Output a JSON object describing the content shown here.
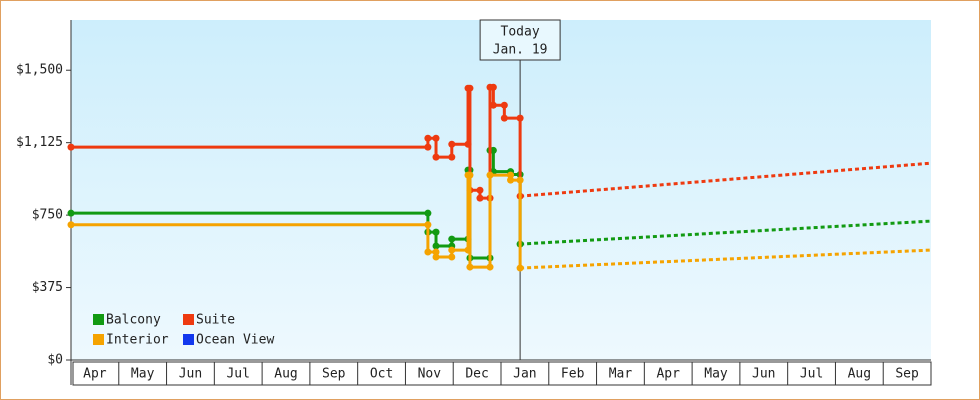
{
  "chart_data": {
    "type": "line",
    "annotation": [
      "Today",
      "Jan. 19"
    ],
    "annotation_x": 9.4,
    "xlim": [
      0,
      18
    ],
    "ylim": [
      0,
      1760
    ],
    "xticks": [
      {
        "value": 0.5,
        "label": "Apr"
      },
      {
        "value": 1.5,
        "label": "May"
      },
      {
        "value": 2.5,
        "label": "Jun"
      },
      {
        "value": 3.5,
        "label": "Jul"
      },
      {
        "value": 4.5,
        "label": "Aug"
      },
      {
        "value": 5.5,
        "label": "Sep"
      },
      {
        "value": 6.5,
        "label": "Oct"
      },
      {
        "value": 7.5,
        "label": "Nov"
      },
      {
        "value": 8.5,
        "label": "Dec"
      },
      {
        "value": 9.5,
        "label": "Jan"
      },
      {
        "value": 10.5,
        "label": "Feb"
      },
      {
        "value": 11.5,
        "label": "Mar"
      },
      {
        "value": 12.5,
        "label": "Apr"
      },
      {
        "value": 13.5,
        "label": "May"
      },
      {
        "value": 14.5,
        "label": "Jun"
      },
      {
        "value": 15.5,
        "label": "Jul"
      },
      {
        "value": 16.5,
        "label": "Aug"
      },
      {
        "value": 17.5,
        "label": "Sep"
      }
    ],
    "yticks": [
      {
        "value": 0,
        "label": "$0"
      },
      {
        "value": 375,
        "label": "$375"
      },
      {
        "value": 750,
        "label": "$750"
      },
      {
        "value": 1125,
        "label": "$1,125"
      },
      {
        "value": 1500,
        "label": "$1,500"
      }
    ],
    "series": [
      {
        "name": "Balcony",
        "color": "#129a12",
        "x": [
          0,
          7.47,
          7.47,
          7.64,
          7.64,
          7.97,
          7.97,
          8.31,
          8.31,
          8.35,
          8.35,
          8.77,
          8.77,
          8.84,
          8.84,
          9.2,
          9.2,
          9.4,
          9.4
        ],
        "values": [
          760,
          760,
          662,
          662,
          590,
          590,
          626,
          626,
          983,
          983,
          528,
          528,
          1085,
          1085,
          975,
          975,
          960,
          960,
          600
        ],
        "forecast_x": [
          9.4,
          18
        ],
        "forecast_values": [
          600,
          719
        ]
      },
      {
        "name": "Suite",
        "color": "#ee3a10",
        "x": [
          0,
          7.47,
          7.47,
          7.64,
          7.64,
          7.97,
          7.97,
          8.31,
          8.31,
          8.35,
          8.35,
          8.56,
          8.56,
          8.77,
          8.77,
          8.84,
          8.84,
          9.07,
          9.07,
          9.4,
          9.4
        ],
        "values": [
          1102,
          1102,
          1148,
          1148,
          1050,
          1050,
          1117,
          1117,
          1407,
          1407,
          879,
          879,
          838,
          838,
          1412,
          1412,
          1319,
          1319,
          1252,
          1252,
          848
        ],
        "forecast_x": [
          9.4,
          18
        ],
        "forecast_values": [
          848,
          1019
        ]
      },
      {
        "name": "Interior",
        "color": "#f5a300",
        "x": [
          0,
          7.47,
          7.47,
          7.64,
          7.64,
          7.97,
          7.97,
          8.31,
          8.31,
          8.35,
          8.35,
          8.77,
          8.77,
          9.2,
          9.2,
          9.4,
          9.4
        ],
        "values": [
          700,
          700,
          559,
          559,
          533,
          533,
          569,
          569,
          957,
          957,
          481,
          481,
          957,
          957,
          931,
          931,
          476
        ],
        "forecast_x": [
          9.4,
          18
        ],
        "forecast_values": [
          476,
          569
        ]
      },
      {
        "name": "Ocean View",
        "color": "#1238ee",
        "x": [],
        "values": [],
        "forecast_x": [],
        "forecast_values": []
      }
    ]
  }
}
